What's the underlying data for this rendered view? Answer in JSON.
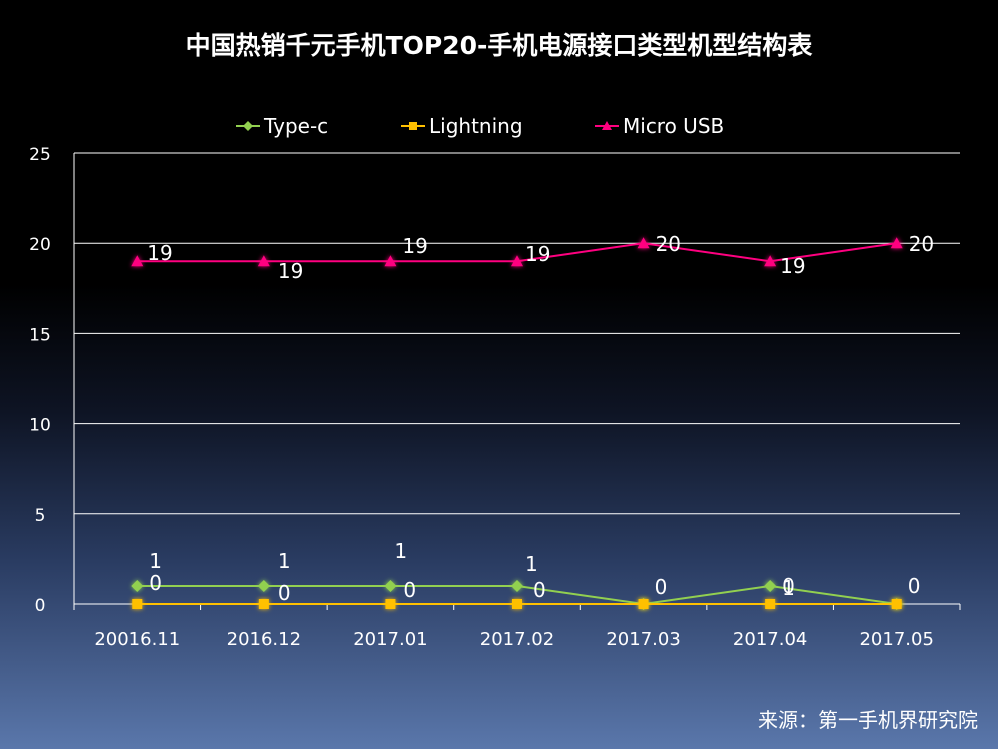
{
  "title": "中国热销千元手机TOP20-手机电源接口类型机型结构表",
  "source": "来源：第一手机界研究院",
  "colors": {
    "background": "#000000",
    "gridline": "#ffffff",
    "type_c": "#92d050",
    "lightning": "#ffc000",
    "micro_usb": "#ff0080"
  },
  "chart_data": {
    "type": "line",
    "categories": [
      "20016.11",
      "2016.12",
      "2017.01",
      "2017.02",
      "2017.03",
      "2017.04",
      "2017.05"
    ],
    "ylim": [
      0,
      25
    ],
    "yticks": [
      0,
      5,
      10,
      15,
      20,
      25
    ],
    "grid": true,
    "legend_position": "top",
    "series": [
      {
        "name": "Type-c",
        "marker": "diamond",
        "values": [
          1,
          1,
          1,
          1,
          0,
          1,
          0
        ],
        "labels": [
          "1",
          "1",
          "1",
          "1",
          "",
          "1",
          ""
        ]
      },
      {
        "name": "Lightning",
        "marker": "square",
        "values": [
          0,
          0,
          0,
          0,
          0,
          0,
          0
        ],
        "labels": [
          "0",
          "0",
          "0",
          "0",
          "0",
          "0",
          "0"
        ]
      },
      {
        "name": "Micro USB",
        "marker": "triangle",
        "values": [
          19,
          19,
          19,
          19,
          20,
          19,
          20
        ],
        "labels": [
          "19",
          "19",
          "19",
          "19",
          "20",
          "19",
          "20"
        ]
      }
    ]
  }
}
